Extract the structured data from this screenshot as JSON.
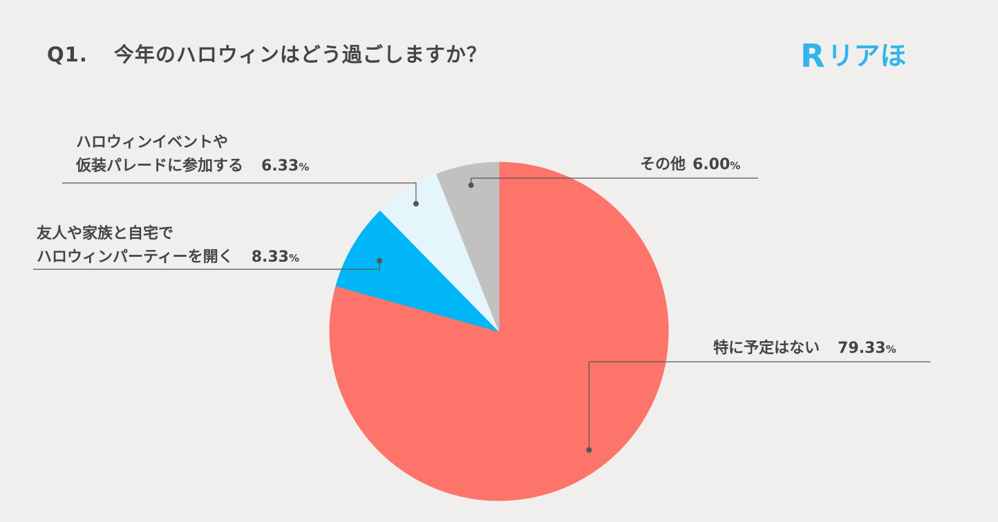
{
  "question": {
    "number": "Q1.",
    "text": "今年のハロウィンはどう過ごしますか？"
  },
  "logo": {
    "mark": "R",
    "text": "リアほ",
    "color": "#2fb5ec"
  },
  "chart_data": {
    "type": "pie",
    "slices": [
      {
        "label": "特に予定はない",
        "value": 79.33,
        "value_text": "79.33",
        "color": "#fd746a"
      },
      {
        "label_lines": [
          "友人や家族と自宅で",
          "ハロウィンパーティーを開く"
        ],
        "value": 8.33,
        "value_text": "8.33",
        "color": "#00b6f6"
      },
      {
        "label_lines": [
          "ハロウィンイベントや",
          "仮装パレードに参加する"
        ],
        "value": 6.33,
        "value_text": "6.33",
        "color": "#e4f5fb"
      },
      {
        "label": "その他",
        "value": 6.0,
        "value_text": "6.00",
        "color": "#c2c1c0"
      }
    ],
    "unit": "%"
  }
}
